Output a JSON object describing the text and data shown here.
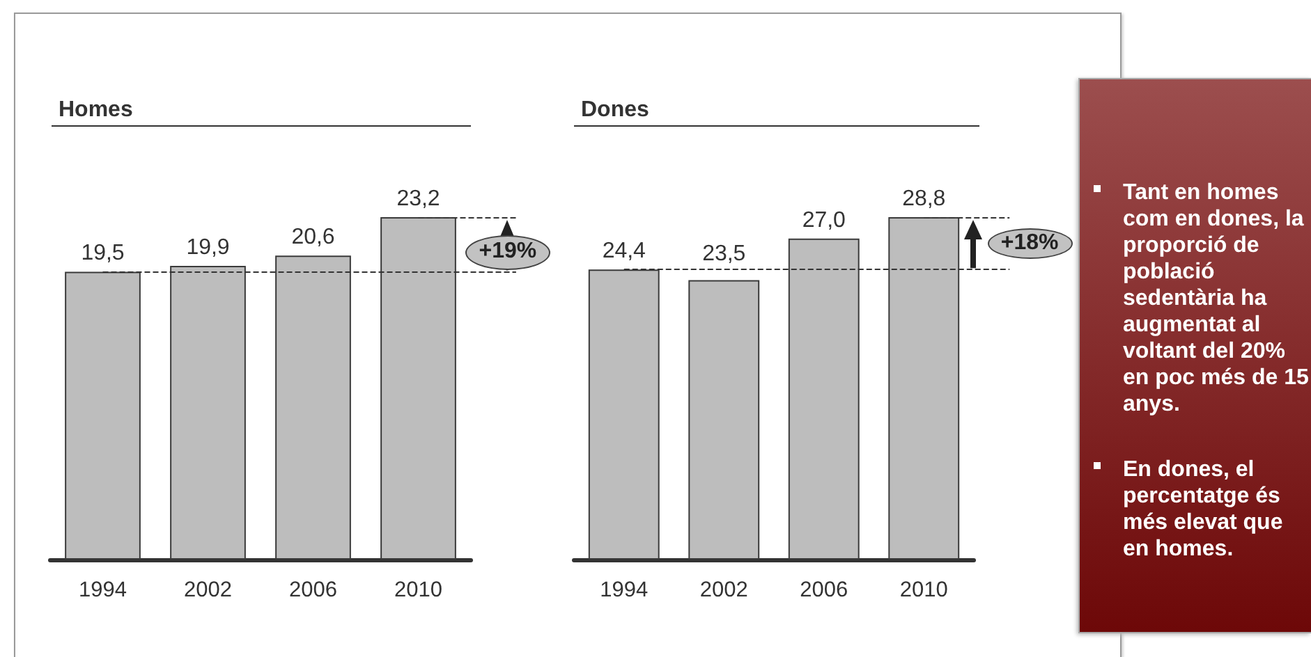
{
  "chart_data": [
    {
      "type": "bar",
      "title": "Homes",
      "categories": [
        "1994",
        "2002",
        "2006",
        "2010"
      ],
      "values": [
        19.5,
        19.9,
        20.6,
        23.2
      ],
      "color": "#bdbdbd",
      "value_labels": [
        "19,5",
        "19,9",
        "20,6",
        "23,2"
      ],
      "ref_lines": [
        {
          "axis": "y",
          "value": 19.5,
          "line_style": "dashed",
          "color": "#333333"
        },
        {
          "axis": "y",
          "value": 23.2,
          "line_style": "dashed",
          "color": "#333333"
        }
      ],
      "annotations": [
        "+19%"
      ],
      "tick_labels": "x"
    },
    {
      "type": "bar",
      "title": "Dones",
      "categories": [
        "1994",
        "2002",
        "2006",
        "2010"
      ],
      "values": [
        24.4,
        23.5,
        27.0,
        28.8
      ],
      "color": "#bdbdbd",
      "value_labels": [
        "24,4",
        "23,5",
        "27,0",
        "28,8"
      ],
      "ref_lines": [
        {
          "axis": "y",
          "value": 24.4,
          "line_style": "dashed",
          "color": "#333333"
        },
        {
          "axis": "y",
          "value": 28.8,
          "line_style": "dashed",
          "color": "#333333"
        }
      ],
      "annotations": [
        "+18%"
      ],
      "tick_labels": "x"
    },
    {
      "type": "other",
      "annotations": [
        "Tant en homes com en dones, la proporció de població sedentària ha augmentat al voltant del 20% en poc més de 15 anys.",
        "En dones, el percentatge és més elevat que en homes."
      ]
    }
  ]
}
